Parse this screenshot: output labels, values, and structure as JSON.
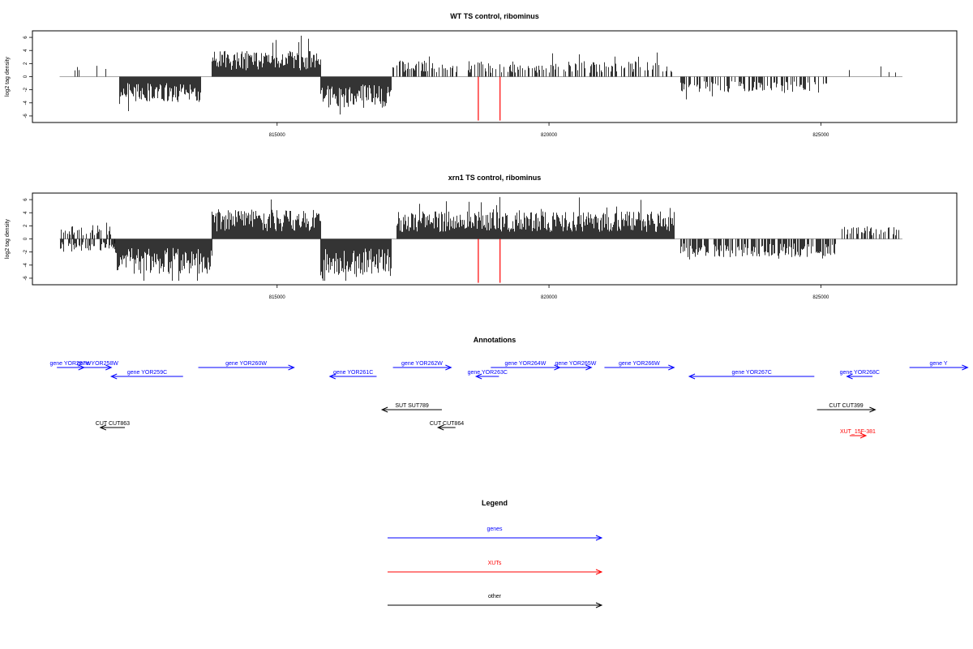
{
  "chart_data": [
    {
      "type": "bar",
      "title": "WT TS control, ribominus",
      "xlabel": "",
      "ylabel": "log2 tag density",
      "xlim": [
        810500,
        827500
      ],
      "ylim": [
        -7,
        7
      ],
      "x_ticks": [
        "815000",
        "820000",
        "825000"
      ],
      "y_ticks": [
        "-6",
        "-4",
        "-2",
        "0",
        "2",
        "4",
        "6"
      ],
      "highlight_color": "#ff0000",
      "highlight_lines": [
        {
          "x": 818700,
          "from": 0,
          "to": -6.7
        },
        {
          "x": 819100,
          "from": 0,
          "to": -6.7
        }
      ],
      "baseline_range": [
        811000,
        826500
      ],
      "segments": [
        {
          "x_start": 811100,
          "x_end": 811900,
          "value": 1.2,
          "density": 0.08,
          "color": "#000000"
        },
        {
          "x_start": 812100,
          "x_end": 813600,
          "value": -2.8,
          "density": 1.0,
          "color": "#000000"
        },
        {
          "x_start": 813800,
          "x_end": 815800,
          "value": 2.8,
          "density": 1.0,
          "color": "#000000"
        },
        {
          "x_start": 815800,
          "x_end": 817100,
          "value": -3.4,
          "density": 1.0,
          "color": "#000000"
        },
        {
          "x_start": 817100,
          "x_end": 818300,
          "value": 1.8,
          "density": 0.45,
          "color": "#000000"
        },
        {
          "x_start": 818500,
          "x_end": 822300,
          "value": 1.7,
          "density": 0.45,
          "color": "#000000"
        },
        {
          "x_start": 822400,
          "x_end": 825100,
          "value": -1.8,
          "density": 0.45,
          "color": "#000000"
        },
        {
          "x_start": 825300,
          "x_end": 826500,
          "value": 1.2,
          "density": 0.05,
          "color": "#000000"
        }
      ]
    },
    {
      "type": "bar",
      "title": "xrn1 TS control, ribominus",
      "xlabel": "",
      "ylabel": "log2 tag density",
      "xlim": [
        810500,
        827500
      ],
      "ylim": [
        -7,
        7
      ],
      "x_ticks": [
        "815000",
        "820000",
        "825000"
      ],
      "y_ticks": [
        "-6",
        "-4",
        "-2",
        "0",
        "2",
        "4",
        "6"
      ],
      "highlight_color": "#ff0000",
      "highlight_lines": [
        {
          "x": 818700,
          "from": 0,
          "to": -6.7
        },
        {
          "x": 819100,
          "from": 0,
          "to": -6.7
        }
      ],
      "baseline_range": [
        811000,
        826500
      ],
      "segments": [
        {
          "x_start": 811000,
          "x_end": 812000,
          "value": -1.4,
          "density": 0.5,
          "color": "#000000"
        },
        {
          "x_start": 811000,
          "x_end": 812000,
          "value": 1.6,
          "density": 0.4,
          "color": "#000000"
        },
        {
          "x_start": 812000,
          "x_end": 813800,
          "value": -3.8,
          "density": 1.0,
          "color": "#000000"
        },
        {
          "x_start": 813800,
          "x_end": 815800,
          "value": 3.2,
          "density": 1.0,
          "color": "#000000"
        },
        {
          "x_start": 815800,
          "x_end": 817100,
          "value": -4.2,
          "density": 1.0,
          "color": "#000000"
        },
        {
          "x_start": 817200,
          "x_end": 822300,
          "value": 3.0,
          "density": 1.0,
          "color": "#000000"
        },
        {
          "x_start": 822400,
          "x_end": 825300,
          "value": -2.0,
          "density": 0.7,
          "color": "#000000"
        },
        {
          "x_start": 825300,
          "x_end": 826500,
          "value": 1.4,
          "density": 0.4,
          "color": "#000000"
        }
      ]
    }
  ],
  "annotations": {
    "title": "Annotations",
    "features": [
      {
        "label": "gene YOR257W",
        "type": "genes",
        "strand": "+",
        "start": 810950,
        "end": 811450,
        "row": 0
      },
      {
        "label": "gene YOR258W",
        "type": "genes",
        "strand": "+",
        "start": 811450,
        "end": 811950,
        "row": 0
      },
      {
        "label": "gene YOR259C",
        "type": "genes",
        "strand": "-",
        "start": 811950,
        "end": 813270,
        "row": 1
      },
      {
        "label": "gene YOR260W",
        "type": "genes",
        "strand": "+",
        "start": 813550,
        "end": 815310,
        "row": 0
      },
      {
        "label": "gene YOR261C",
        "type": "genes",
        "strand": "-",
        "start": 815970,
        "end": 816830,
        "row": 1
      },
      {
        "label": "gene YOR262W",
        "type": "genes",
        "strand": "+",
        "start": 817130,
        "end": 818200,
        "row": 0
      },
      {
        "label": "gene YOR263C",
        "type": "genes",
        "strand": "-",
        "start": 818660,
        "end": 819080,
        "row": 1
      },
      {
        "label": "gene YOR264W",
        "type": "genes",
        "strand": "+",
        "start": 818930,
        "end": 820200,
        "row": 0
      },
      {
        "label": "gene YOR265W",
        "type": "genes",
        "strand": "+",
        "start": 820200,
        "end": 820780,
        "row": 0
      },
      {
        "label": "gene YOR266W",
        "type": "genes",
        "strand": "+",
        "start": 821020,
        "end": 822300,
        "row": 0
      },
      {
        "label": "gene YOR267C",
        "type": "genes",
        "strand": "-",
        "start": 822580,
        "end": 824880,
        "row": 1
      },
      {
        "label": "gene YOR268C",
        "type": "genes",
        "strand": "-",
        "start": 825480,
        "end": 825950,
        "row": 1
      },
      {
        "label": "gene Y",
        "type": "genes",
        "strand": "+",
        "start": 826630,
        "end": 827700,
        "row": 0
      },
      {
        "label": "SUT SUT789",
        "type": "other",
        "strand": "-",
        "start": 816930,
        "end": 818030,
        "row": 3
      },
      {
        "label": "CUT CUT863",
        "type": "other",
        "strand": "-",
        "start": 811750,
        "end": 812200,
        "row": 4
      },
      {
        "label": "CUT CUT864",
        "type": "other",
        "strand": "-",
        "start": 817960,
        "end": 818280,
        "row": 4
      },
      {
        "label": "CUT CUT399",
        "type": "other",
        "strand": "+",
        "start": 824930,
        "end": 826000,
        "row": 3
      },
      {
        "label": "XUT_15F-381",
        "type": "XUTs",
        "strand": "+",
        "start": 825530,
        "end": 825830,
        "row": 5
      }
    ]
  },
  "legend": {
    "title": "Legend",
    "items": [
      {
        "label": "genes",
        "color": "#0000ff"
      },
      {
        "label": "XUTs",
        "color": "#ff0000"
      },
      {
        "label": "other",
        "color": "#000000"
      }
    ]
  },
  "colors": {
    "genes": "#0000ff",
    "XUTs": "#ff0000",
    "other": "#000000",
    "axis": "#000000",
    "baseline": "#888888"
  }
}
